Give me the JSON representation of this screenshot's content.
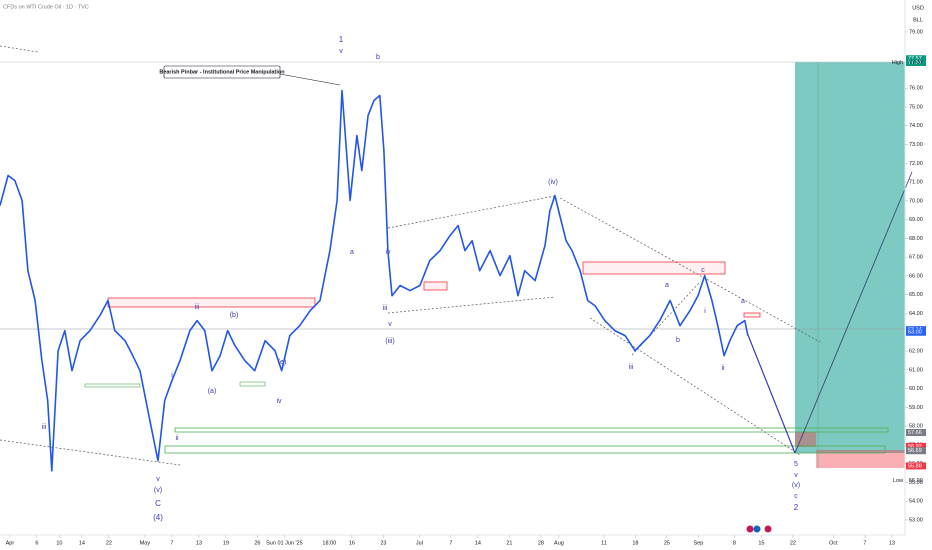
{
  "header": {
    "symbol": "CFDs on WTI Crude Oil · 1D · TVC",
    "currency": "USD",
    "unit": "BLL",
    "crosshair_time": "18:00"
  },
  "callout": "Bearish Pinbar - Institutional Price Manipulation",
  "annotations": [
    "1",
    "v",
    "b",
    "(iii)",
    "v",
    "iii",
    "a",
    "iv",
    "(iv)",
    "iii",
    "v",
    "(v)",
    "C",
    "(4)",
    "iii",
    "i",
    "ii",
    "iii",
    "(a)",
    "(b)",
    "(e)",
    "iv",
    "v",
    "(v)",
    "c",
    "2",
    "a",
    "b",
    "c",
    "i",
    "ii",
    "a",
    "5"
  ],
  "chart_data": {
    "type": "line",
    "xlim": [
      -2.2,
      198.9
    ],
    "xticks": [
      {
        "value": 0,
        "label": "Apr"
      },
      {
        "value": 6,
        "label": "6"
      },
      {
        "value": 11,
        "label": "10"
      },
      {
        "value": 16,
        "label": "14"
      },
      {
        "value": 22,
        "label": "22"
      },
      {
        "value": 30,
        "label": "May"
      },
      {
        "value": 36,
        "label": "7"
      },
      {
        "value": 42,
        "label": "13"
      },
      {
        "value": 48,
        "label": "19"
      },
      {
        "value": 55,
        "label": "26"
      },
      {
        "value": 61,
        "label": "Sun 01 Jun '25"
      },
      {
        "value": 76,
        "label": "16"
      },
      {
        "value": 83,
        "label": "23"
      },
      {
        "value": 91,
        "label": "Jul"
      },
      {
        "value": 98,
        "label": "7"
      },
      {
        "value": 104,
        "label": "14"
      },
      {
        "value": 111,
        "label": "21"
      },
      {
        "value": 118,
        "label": "28"
      },
      {
        "value": 122,
        "label": "Aug"
      },
      {
        "value": 132,
        "label": "11"
      },
      {
        "value": 139,
        "label": "18"
      },
      {
        "value": 146,
        "label": "25"
      },
      {
        "value": 153,
        "label": "Sep"
      },
      {
        "value": 161,
        "label": "8"
      },
      {
        "value": 167,
        "label": "15"
      },
      {
        "value": 174,
        "label": "22"
      },
      {
        "value": 183,
        "label": "Oct"
      },
      {
        "value": 190,
        "label": "7"
      },
      {
        "value": 196,
        "label": "13"
      }
    ],
    "ylim": [
      52.2,
      80.7
    ],
    "yticks": [
      {
        "value": 53,
        "label": "53.00"
      },
      {
        "value": 54,
        "label": "54.00"
      },
      {
        "value": 55,
        "label": "55.00"
      },
      {
        "value": 56,
        "label": "56.00"
      },
      {
        "value": 57,
        "label": "57.00"
      },
      {
        "value": 58,
        "label": "58.00"
      },
      {
        "value": 59,
        "label": "59.00"
      },
      {
        "value": 60,
        "label": "60.00"
      },
      {
        "value": 61,
        "label": "61.00"
      },
      {
        "value": 62,
        "label": "62.00"
      },
      {
        "value": 64,
        "label": "64.00"
      },
      {
        "value": 65,
        "label": "65.00"
      },
      {
        "value": 66,
        "label": "66.00"
      },
      {
        "value": 67,
        "label": "67.00"
      },
      {
        "value": 68,
        "label": "68.00"
      },
      {
        "value": 69,
        "label": "69.00"
      },
      {
        "value": 70,
        "label": "70.00"
      },
      {
        "value": 71,
        "label": "71.00"
      },
      {
        "value": 72,
        "label": "72.00"
      },
      {
        "value": 73,
        "label": "73.00"
      },
      {
        "value": 74,
        "label": "74.00"
      },
      {
        "value": 75,
        "label": "75.00"
      },
      {
        "value": 76,
        "label": "76.00"
      },
      {
        "value": 79,
        "label": "79.00"
      }
    ],
    "marker_labels": [
      {
        "value": 77.57,
        "label": "77.57",
        "color": "#089981"
      },
      {
        "value": 77.37,
        "label": "77.37",
        "color": "#089981"
      },
      {
        "value": 63.14,
        "label": "63.14",
        "color": "#2962ff"
      },
      {
        "value": 63,
        "label": "63.00",
        "color": "#2962ff"
      },
      {
        "value": 57.66,
        "label": "57.66",
        "color": "#787b86"
      },
      {
        "value": 56.92,
        "label": "56.92",
        "color": "#f23645"
      },
      {
        "value": 56.69,
        "label": "56.69",
        "color": "#787b86"
      },
      {
        "value": 55.88,
        "label": "55.88",
        "color": "#f23645"
      }
    ],
    "high": {
      "label": "High",
      "value": 77.37
    },
    "low": {
      "label": "Low",
      "value": 55.09
    },
    "series": [
      {
        "color": "#2156e8",
        "x": [
          -2.2,
          -0.4,
          1.1,
          2.7,
          4.0,
          5.6,
          7.1,
          8.4,
          9.3,
          10.7,
          12.2,
          13.8,
          15.6,
          17.8,
          20.0,
          21.8,
          23.3,
          25.6,
          27.3,
          28.9,
          31.1,
          32.9,
          34.4,
          36.0,
          37.8,
          40.0,
          41.6,
          43.3,
          44.9,
          46.7,
          48.4,
          50.0,
          52.2,
          54.4,
          56.7,
          58.9,
          60.4,
          62.2,
          64.4,
          66.7,
          68.9,
          71.1,
          72.7,
          73.8,
          75.6,
          77.1,
          78.2,
          79.6,
          80.9,
          82.2,
          83.1,
          84.0,
          84.9,
          86.7,
          88.9,
          91.1,
          93.3,
          95.6,
          97.8,
          99.6,
          101.1,
          102.7,
          104.4,
          106.7,
          108.9,
          111.1,
          112.9,
          114.4,
          116.7,
          118.9,
          120.0,
          121.1,
          122.2,
          123.6,
          124.9,
          126.7,
          128.4,
          130.0,
          132.2,
          134.4,
          136.7,
          138.9,
          140.0,
          142.2,
          144.4,
          146.7,
          148.9,
          151.1,
          152.9,
          154.4,
          156.0,
          157.3,
          158.7,
          160.0,
          161.6,
          163.3,
          164.0
        ],
        "values": [
          69.75,
          71.35,
          71.08,
          70.02,
          66.28,
          64.69,
          61.49,
          59.36,
          55.62,
          62.02,
          63.09,
          60.95,
          62.55,
          63.09,
          63.89,
          64.69,
          63.09,
          62.55,
          61.75,
          60.95,
          58.29,
          56.16,
          59.36,
          60.42,
          61.49,
          63.09,
          63.62,
          63.09,
          60.95,
          61.75,
          63.09,
          62.29,
          61.49,
          60.95,
          62.55,
          62.02,
          60.95,
          62.82,
          63.35,
          64.15,
          64.69,
          67.35,
          70.02,
          75.88,
          70.02,
          73.48,
          71.61,
          74.55,
          75.35,
          75.61,
          72.68,
          67.35,
          64.95,
          65.49,
          65.22,
          65.49,
          66.82,
          67.35,
          68.15,
          68.68,
          67.35,
          67.88,
          66.28,
          67.35,
          66.02,
          67.08,
          64.95,
          66.28,
          65.75,
          67.62,
          69.48,
          70.28,
          69.22,
          67.88,
          67.35,
          66.28,
          64.69,
          64.42,
          63.62,
          63.09,
          62.82,
          62.02,
          62.29,
          62.82,
          63.62,
          64.69,
          63.35,
          64.15,
          64.95,
          66.02,
          64.69,
          63.35,
          61.75,
          62.55,
          63.35,
          63.62,
          62.82
        ]
      }
    ]
  }
}
